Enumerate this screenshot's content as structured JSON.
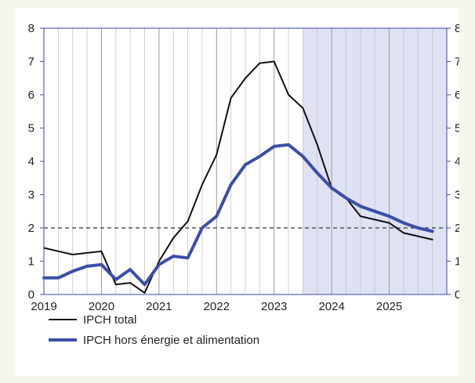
{
  "chart_data": {
    "type": "line",
    "title": "",
    "xlabel": "",
    "ylabel": "",
    "xlim": [
      2019.0,
      2026.0
    ],
    "ylim": [
      0,
      8
    ],
    "y_ticks": [
      "0",
      "1",
      "2",
      "3",
      "4",
      "5",
      "6",
      "7",
      "8"
    ],
    "x_ticks": [
      "2019",
      "2020",
      "2021",
      "2022",
      "2023",
      "2024",
      "2025"
    ],
    "right_axis_mirrors_left": true,
    "grid": "vertical quarterly lines",
    "reference_line": {
      "y": 2,
      "style": "dashed"
    },
    "projection_shading_start": 2023.5,
    "legend_position": "bottom-left, below chart",
    "series": [
      {
        "name": "IPCH total",
        "color": "#111111",
        "x": [
          2019.0,
          2019.25,
          2019.5,
          2019.75,
          2020.0,
          2020.25,
          2020.5,
          2020.75,
          2021.0,
          2021.25,
          2021.5,
          2021.75,
          2022.0,
          2022.25,
          2022.5,
          2022.75,
          2023.0,
          2023.25,
          2023.5,
          2023.75,
          2024.0,
          2024.25,
          2024.5,
          2024.75,
          2025.0,
          2025.25,
          2025.5,
          2025.75
        ],
        "values": [
          1.4,
          1.3,
          1.2,
          1.25,
          1.3,
          0.3,
          0.35,
          0.05,
          1.0,
          1.7,
          2.2,
          3.3,
          4.2,
          5.9,
          6.5,
          6.95,
          7.0,
          6.0,
          5.6,
          4.5,
          3.2,
          2.9,
          2.35,
          2.25,
          2.15,
          1.85,
          1.75,
          1.65
        ]
      },
      {
        "name": "IPCH hors énergie et alimentation",
        "color": "#3b4ea8",
        "x": [
          2019.0,
          2019.25,
          2019.5,
          2019.75,
          2020.0,
          2020.25,
          2020.5,
          2020.75,
          2021.0,
          2021.25,
          2021.5,
          2021.75,
          2022.0,
          2022.25,
          2022.5,
          2022.75,
          2023.0,
          2023.25,
          2023.5,
          2023.75,
          2024.0,
          2024.25,
          2024.5,
          2024.75,
          2025.0,
          2025.25,
          2025.5,
          2025.75
        ],
        "values": [
          0.5,
          0.5,
          0.7,
          0.85,
          0.9,
          0.45,
          0.75,
          0.3,
          0.9,
          1.15,
          1.1,
          2.0,
          2.35,
          3.3,
          3.9,
          4.15,
          4.45,
          4.5,
          4.15,
          3.65,
          3.2,
          2.9,
          2.65,
          2.5,
          2.35,
          2.15,
          2.0,
          1.9
        ]
      }
    ]
  },
  "legend": [
    {
      "label": "IPCH total",
      "color": "#111111"
    },
    {
      "label": "IPCH hors énergie et alimentation",
      "color": "#3b4ea8"
    }
  ]
}
